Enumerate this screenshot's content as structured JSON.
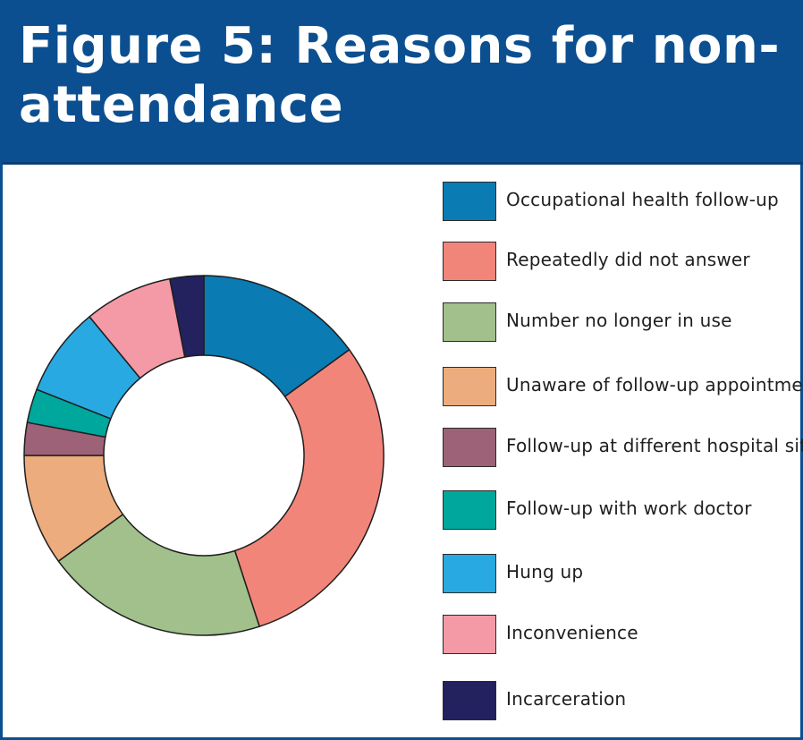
{
  "title": "Figure 5: Reasons for non-attendance",
  "chart_data": {
    "type": "pie",
    "style": "donut",
    "title": "Figure 5: Reasons for non-attendance",
    "categories": [
      "Occupational health follow-up",
      "Repeatedly did not answer",
      "Number no longer in use",
      "Unaware of follow-up appointment",
      "Follow-up at different hospital site",
      "Follow-up with work doctor",
      "Hung up",
      "Inconvenience",
      "Incarceration"
    ],
    "values": [
      15.3,
      30.6,
      20.4,
      10.2,
      3.0,
      3.1,
      8.2,
      8.1,
      3.1
    ],
    "colors": [
      "#0a7bb3",
      "#f2857a",
      "#a1c08b",
      "#ecac7d",
      "#9d6178",
      "#00a79d",
      "#29a9e1",
      "#f49aa6",
      "#23215e"
    ],
    "legend_position": "right"
  }
}
